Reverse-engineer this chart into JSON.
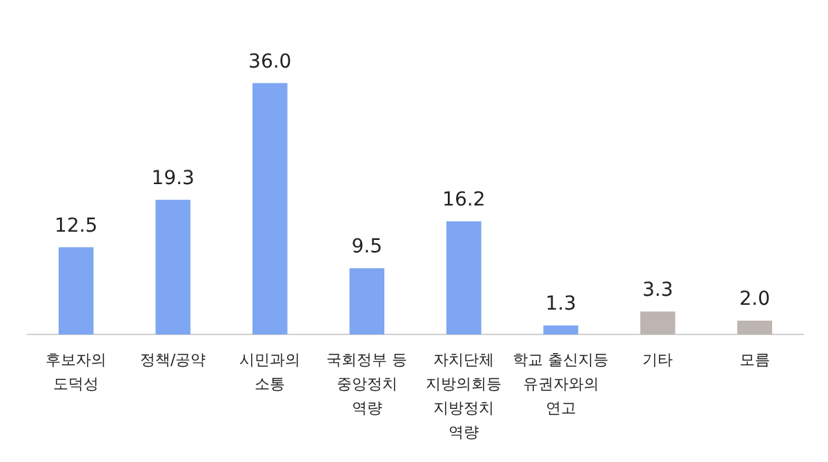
{
  "chart_data": {
    "type": "bar",
    "categories": [
      "후보자의\n도덕성",
      "정책/공약",
      "시민과의\n소통",
      "국회정부 등\n중앙정치\n역량",
      "자치단체\n지방의회등\n지방정치\n역량",
      "학교 출신지등\n유권자와의\n연고",
      "기타",
      "모름"
    ],
    "values": [
      12.5,
      19.3,
      36.0,
      9.5,
      16.2,
      1.3,
      3.3,
      2.0
    ],
    "value_labels": [
      "12.5",
      "19.3",
      "36.0",
      "9.5",
      "16.2",
      "1.3",
      "3.3",
      "2.0"
    ],
    "colors": [
      "#7ea6f2",
      "#7ea6f2",
      "#7ea6f2",
      "#7ea6f2",
      "#7ea6f2",
      "#7ea6f2",
      "#bdb5b1",
      "#bdb5b1"
    ],
    "grid": false,
    "legend": false
  }
}
